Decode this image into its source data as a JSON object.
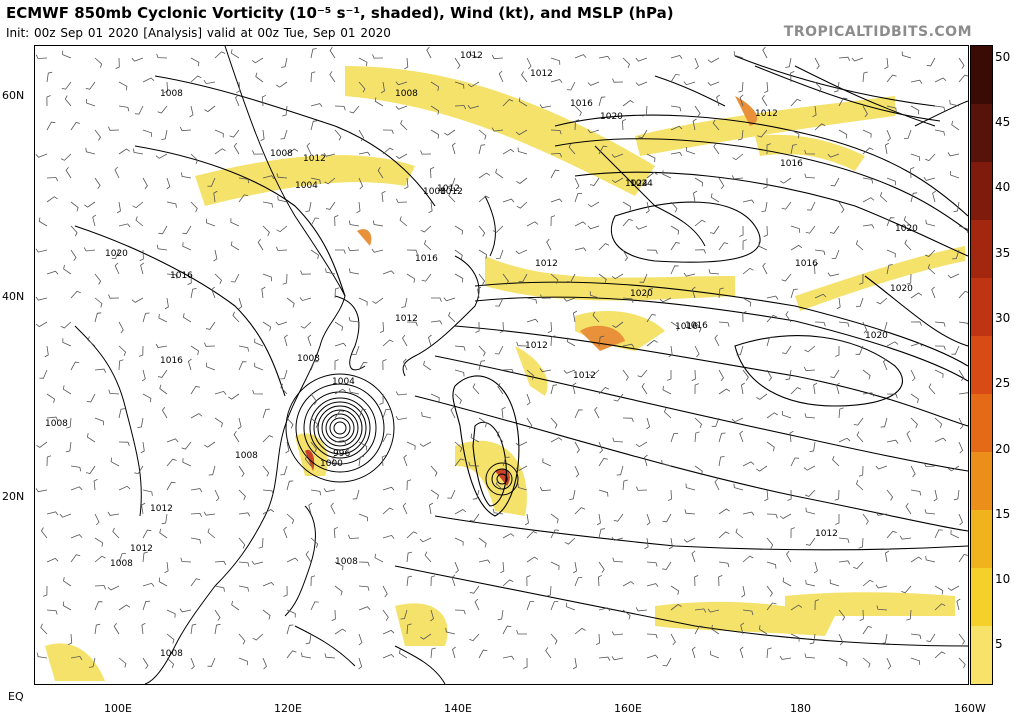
{
  "header": {
    "title": "ECMWF 850mb Cyclonic Vorticity (10⁻⁵ s⁻¹, shaded), Wind (kt), and MSLP (hPa)",
    "subtitle": "Init: 00z Sep 01 2020   [Analysis]   valid at 00z Tue, Sep 01 2020",
    "brand": "TROPICALTIDBITS.COM"
  },
  "map": {
    "lat_labels": [
      "60N",
      "40N",
      "20N",
      "EQ"
    ],
    "lon_labels": [
      "100E",
      "120E",
      "140E",
      "160E",
      "180",
      "160W"
    ],
    "isobar_labels": [
      "1012",
      "1012",
      "1008",
      "1012",
      "1008",
      "1016",
      "1016",
      "1012",
      "1020",
      "1012",
      "1016",
      "1008",
      "1012",
      "1004",
      "1008",
      "1012",
      "1024",
      "1016",
      "1020",
      "1020",
      "1016",
      "1020",
      "1024",
      "1020",
      "1016",
      "1012",
      "1012",
      "1012",
      "1008",
      "1004",
      "1020",
      "1016",
      "1016",
      "1008",
      "1012",
      "1012",
      "1000",
      "996",
      "1008",
      "1008",
      "1008",
      "1008",
      "1012"
    ],
    "colors": {
      "land_line": "#000000",
      "isobar": "#000000",
      "wind": "#555555"
    }
  },
  "colorbar": {
    "ticks": [
      "50",
      "45",
      "40",
      "35",
      "30",
      "25",
      "20",
      "15",
      "10",
      "5"
    ],
    "colors": [
      "#f9e26a",
      "#f5cf2a",
      "#f0b21d",
      "#eb8e1a",
      "#e56a17",
      "#d84b15",
      "#bf3412",
      "#a3260f",
      "#7e1b0c",
      "#571209",
      "#3a0b05"
    ]
  }
}
